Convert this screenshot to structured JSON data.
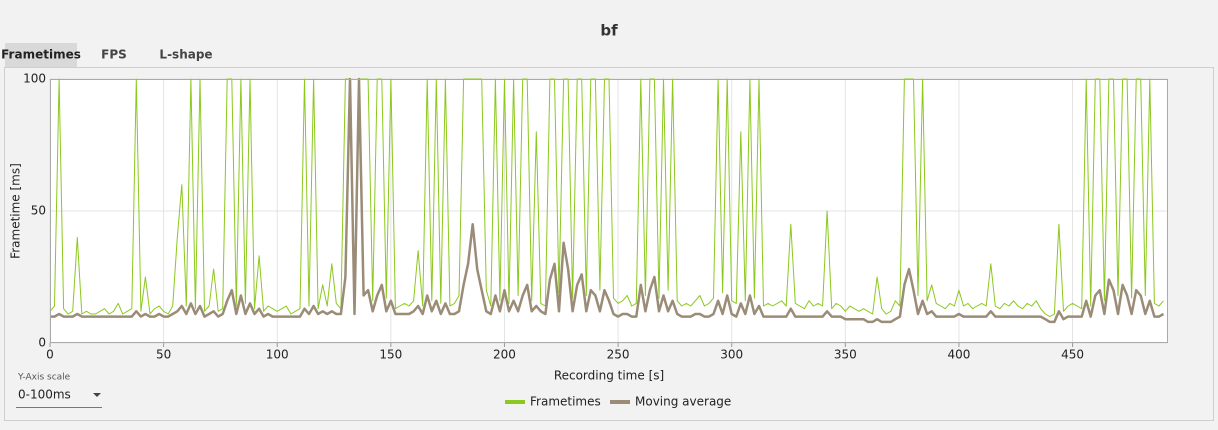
{
  "tabs": [
    "Frametimes",
    "FPS",
    "L-shape"
  ],
  "y_axis_scale": {
    "label": "Y-Axis scale",
    "value": "0-100ms"
  },
  "chart_data": {
    "type": "line",
    "title": "bf",
    "x_label": "Recording time [s]",
    "y_label": "Frametime [ms]",
    "xlim": [
      0,
      492
    ],
    "ylim": [
      0,
      100
    ],
    "xticks": [
      0,
      50,
      100,
      150,
      200,
      250,
      300,
      350,
      400,
      450
    ],
    "yticks": [
      0,
      50,
      100
    ],
    "grid": true,
    "x": [
      0,
      2,
      4,
      6,
      8,
      10,
      12,
      14,
      16,
      18,
      20,
      22,
      24,
      26,
      28,
      30,
      32,
      34,
      36,
      38,
      40,
      42,
      44,
      46,
      48,
      50,
      52,
      54,
      56,
      58,
      60,
      62,
      64,
      66,
      68,
      70,
      72,
      74,
      76,
      78,
      80,
      82,
      84,
      86,
      88,
      90,
      92,
      94,
      96,
      98,
      100,
      102,
      104,
      106,
      108,
      110,
      112,
      114,
      116,
      118,
      120,
      122,
      124,
      126,
      128,
      130,
      132,
      134,
      136,
      138,
      140,
      142,
      144,
      146,
      148,
      150,
      152,
      154,
      156,
      158,
      160,
      162,
      164,
      166,
      168,
      170,
      172,
      174,
      176,
      178,
      180,
      182,
      184,
      186,
      188,
      190,
      192,
      194,
      196,
      198,
      200,
      202,
      204,
      206,
      208,
      210,
      212,
      214,
      216,
      218,
      220,
      222,
      224,
      226,
      228,
      230,
      232,
      234,
      236,
      238,
      240,
      242,
      244,
      246,
      248,
      250,
      252,
      254,
      256,
      258,
      260,
      262,
      264,
      266,
      268,
      270,
      272,
      274,
      276,
      278,
      280,
      282,
      284,
      286,
      288,
      290,
      292,
      294,
      296,
      298,
      300,
      302,
      304,
      306,
      308,
      310,
      312,
      314,
      316,
      318,
      320,
      322,
      324,
      326,
      328,
      330,
      332,
      334,
      336,
      338,
      340,
      342,
      344,
      346,
      348,
      350,
      352,
      354,
      356,
      358,
      360,
      362,
      364,
      366,
      368,
      370,
      372,
      374,
      376,
      378,
      380,
      382,
      384,
      386,
      388,
      390,
      392,
      394,
      396,
      398,
      400,
      402,
      404,
      406,
      408,
      410,
      412,
      414,
      416,
      418,
      420,
      422,
      424,
      426,
      428,
      430,
      432,
      434,
      436,
      438,
      440,
      442,
      444,
      446,
      448,
      450,
      452,
      454,
      456,
      458,
      460,
      462,
      464,
      466,
      468,
      470,
      472,
      474,
      476,
      478,
      480,
      482,
      484,
      486,
      488,
      490
    ],
    "series": [
      {
        "name": "Frametimes",
        "color": "#8cc81e",
        "values": [
          12,
          14,
          100,
          13,
          11,
          12,
          40,
          11,
          12,
          11,
          11,
          12,
          13,
          11,
          12,
          15,
          11,
          12,
          13,
          100,
          12,
          25,
          11,
          13,
          14,
          12,
          11,
          14,
          40,
          60,
          14,
          100,
          13,
          100,
          12,
          14,
          28,
          12,
          13,
          100,
          100,
          14,
          100,
          15,
          100,
          13,
          33,
          12,
          14,
          13,
          12,
          13,
          14,
          11,
          12,
          13,
          100,
          14,
          100,
          13,
          22,
          14,
          30,
          15,
          13,
          100,
          100,
          14,
          100,
          100,
          100,
          16,
          100,
          100,
          17,
          100,
          13,
          14,
          15,
          14,
          16,
          35,
          14,
          100,
          16,
          100,
          15,
          100,
          14,
          15,
          18,
          100,
          100,
          100,
          100,
          100,
          20,
          14,
          100,
          16,
          100,
          15,
          100,
          18,
          100,
          100,
          16,
          80,
          15,
          14,
          100,
          100,
          19,
          100,
          100,
          17,
          100,
          100,
          18,
          100,
          100,
          20,
          100,
          100,
          17,
          15,
          16,
          18,
          14,
          15,
          100,
          18,
          100,
          100,
          17,
          100,
          20,
          100,
          16,
          14,
          15,
          14,
          16,
          18,
          14,
          15,
          17,
          100,
          19,
          100,
          16,
          15,
          80,
          16,
          100,
          17,
          100,
          14,
          15,
          14,
          15,
          16,
          14,
          45,
          15,
          14,
          13,
          16,
          14,
          15,
          14,
          50,
          13,
          15,
          14,
          12,
          14,
          13,
          12,
          13,
          12,
          11,
          25,
          13,
          11,
          12,
          16,
          14,
          100,
          100,
          100,
          18,
          100,
          16,
          22,
          15,
          14,
          13,
          15,
          14,
          20,
          14,
          15,
          13,
          14,
          15,
          14,
          30,
          14,
          13,
          15,
          14,
          16,
          14,
          13,
          15,
          14,
          16,
          13,
          11,
          10,
          11,
          45,
          12,
          14,
          15,
          14,
          13,
          100,
          14,
          100,
          100,
          16,
          100,
          100,
          18,
          100,
          100,
          17,
          100,
          100,
          18,
          100,
          15,
          14,
          16
        ]
      },
      {
        "name": "Moving average",
        "color": "#9b8c78",
        "values": [
          10,
          10,
          11,
          10,
          10,
          10,
          11,
          10,
          10,
          10,
          10,
          10,
          10,
          10,
          10,
          10,
          10,
          10,
          10,
          12,
          10,
          11,
          10,
          10,
          11,
          10,
          10,
          11,
          12,
          14,
          11,
          15,
          11,
          14,
          10,
          11,
          12,
          10,
          11,
          16,
          20,
          11,
          18,
          11,
          15,
          11,
          13,
          10,
          11,
          10,
          10,
          10,
          10,
          10,
          10,
          10,
          13,
          11,
          14,
          11,
          12,
          11,
          12,
          11,
          11,
          25,
          100,
          11,
          100,
          18,
          20,
          12,
          18,
          22,
          12,
          16,
          11,
          11,
          11,
          11,
          12,
          14,
          11,
          18,
          12,
          16,
          11,
          15,
          11,
          11,
          12,
          22,
          30,
          45,
          28,
          20,
          12,
          11,
          18,
          12,
          20,
          12,
          16,
          12,
          18,
          22,
          12,
          14,
          12,
          11,
          24,
          30,
          12,
          38,
          28,
          12,
          22,
          26,
          12,
          20,
          18,
          12,
          20,
          16,
          11,
          10,
          11,
          11,
          10,
          10,
          22,
          12,
          20,
          25,
          12,
          18,
          12,
          16,
          11,
          10,
          10,
          10,
          11,
          11,
          10,
          10,
          11,
          16,
          11,
          18,
          11,
          10,
          15,
          11,
          18,
          11,
          14,
          10,
          10,
          10,
          10,
          10,
          10,
          13,
          10,
          10,
          10,
          10,
          10,
          10,
          10,
          12,
          10,
          10,
          10,
          9,
          9,
          9,
          9,
          9,
          8,
          8,
          9,
          8,
          8,
          8,
          9,
          10,
          22,
          28,
          20,
          11,
          16,
          11,
          12,
          10,
          10,
          10,
          10,
          10,
          11,
          10,
          10,
          10,
          10,
          10,
          10,
          12,
          10,
          10,
          10,
          10,
          10,
          10,
          10,
          10,
          10,
          10,
          10,
          9,
          8,
          8,
          12,
          9,
          10,
          10,
          10,
          10,
          16,
          10,
          18,
          20,
          11,
          24,
          20,
          11,
          22,
          18,
          11,
          20,
          18,
          11,
          16,
          10,
          10,
          11
        ]
      }
    ]
  }
}
